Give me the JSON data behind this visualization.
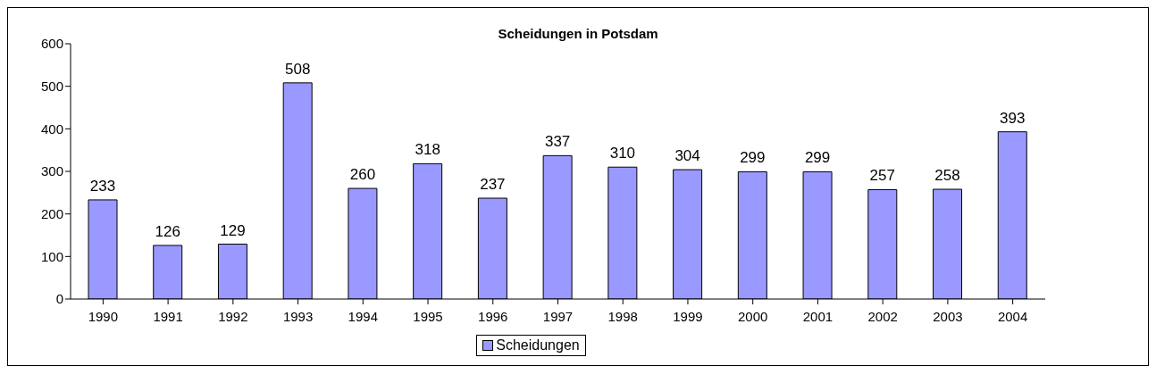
{
  "chart_data": {
    "type": "bar",
    "title": "Scheidungen in Potsdam",
    "categories": [
      "1990",
      "1991",
      "1992",
      "1993",
      "1994",
      "1995",
      "1996",
      "1997",
      "1998",
      "1999",
      "2000",
      "2001",
      "2002",
      "2003",
      "2004"
    ],
    "series": [
      {
        "name": "Scheidungen",
        "color": "#9999ff",
        "values": [
          233,
          126,
          129,
          508,
          260,
          318,
          237,
          337,
          310,
          304,
          299,
          299,
          257,
          258,
          393
        ]
      }
    ],
    "ylim": [
      0,
      600
    ],
    "yticks": [
      0,
      100,
      200,
      300,
      400,
      500,
      600
    ],
    "grid": false,
    "legend": "bottom",
    "data_labels": true
  }
}
